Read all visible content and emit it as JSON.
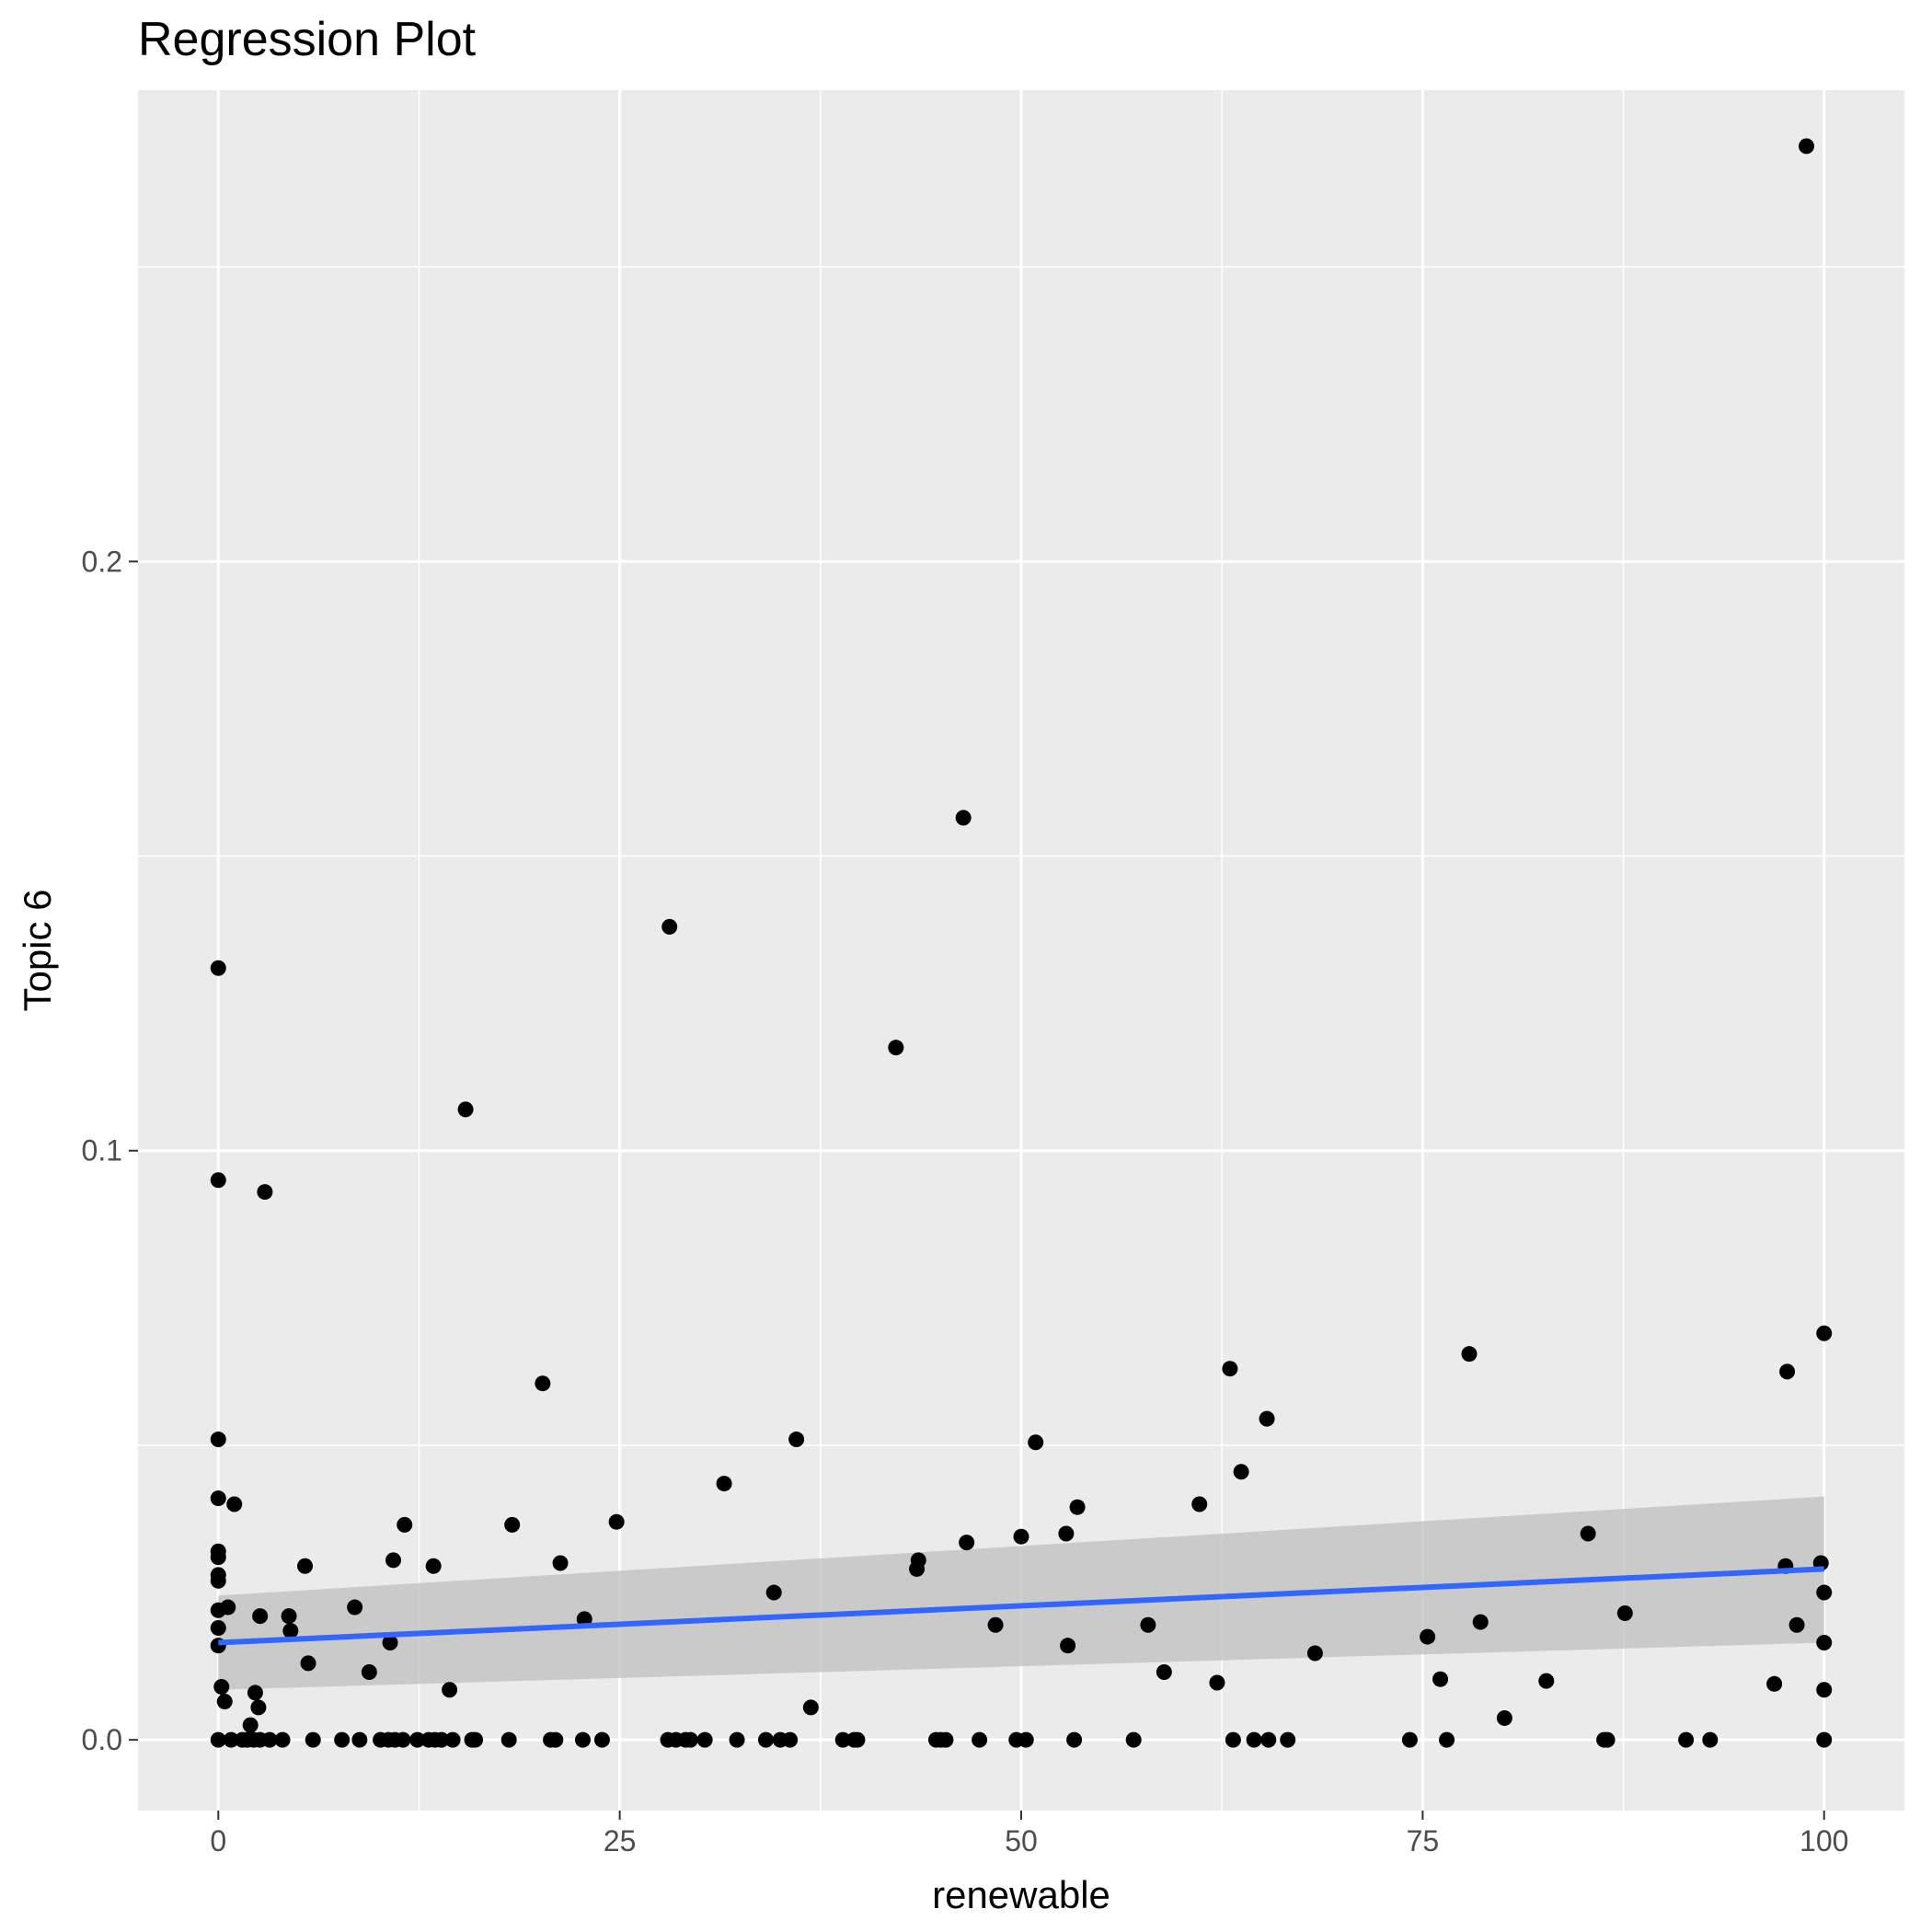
{
  "chart_data": {
    "type": "scatter",
    "title": "Regression Plot",
    "xlabel": "renewable",
    "ylabel": "Topic 6",
    "xlim": [
      -5,
      105
    ],
    "ylim": [
      -0.012,
      0.28
    ],
    "x_ticks": [
      0,
      25,
      50,
      75,
      100
    ],
    "x_tick_labels": [
      "0",
      "25",
      "50",
      "75",
      "100"
    ],
    "y_ticks": [
      0.0,
      0.1,
      0.2
    ],
    "y_tick_labels": [
      "0.0",
      "0.1",
      "0.2"
    ],
    "grid": true,
    "colors": {
      "panel": "#ebebeb",
      "grid_major": "#ffffff",
      "point": "#000000",
      "fit_line": "#3366ff",
      "confidence_band": "#bfbfbf"
    },
    "regression": {
      "x": [
        0,
        100
      ],
      "y": [
        0.0165,
        0.029
      ],
      "ci_lower": [
        0.0085,
        0.0165
      ],
      "ci_upper": [
        0.0245,
        0.0413
      ]
    },
    "points": [
      {
        "x": 0,
        "y": 0.131
      },
      {
        "x": 0,
        "y": 0.095
      },
      {
        "x": 0,
        "y": 0.051
      },
      {
        "x": 0,
        "y": 0.041
      },
      {
        "x": 0,
        "y": 0.032
      },
      {
        "x": 0,
        "y": 0.031
      },
      {
        "x": 0,
        "y": 0.028
      },
      {
        "x": 0,
        "y": 0.027
      },
      {
        "x": 0,
        "y": 0.022
      },
      {
        "x": 0,
        "y": 0.019
      },
      {
        "x": 0,
        "y": 0.016
      },
      {
        "x": 0,
        "y": 0.0
      },
      {
        "x": 0.2,
        "y": 0.009
      },
      {
        "x": 0.4,
        "y": 0.0065
      },
      {
        "x": 0.6,
        "y": 0.0225
      },
      {
        "x": 0.8,
        "y": 0.0
      },
      {
        "x": 1.0,
        "y": 0.04
      },
      {
        "x": 1.5,
        "y": 0.0
      },
      {
        "x": 1.8,
        "y": 0.0
      },
      {
        "x": 2.0,
        "y": 0.0025
      },
      {
        "x": 2.2,
        "y": 0.0
      },
      {
        "x": 2.3,
        "y": 0.008
      },
      {
        "x": 2.5,
        "y": 0.0055
      },
      {
        "x": 2.6,
        "y": 0.0
      },
      {
        "x": 2.6,
        "y": 0.021
      },
      {
        "x": 2.9,
        "y": 0.093
      },
      {
        "x": 3.2,
        "y": 0.0
      },
      {
        "x": 4.0,
        "y": 0.0
      },
      {
        "x": 4.4,
        "y": 0.021
      },
      {
        "x": 4.5,
        "y": 0.0185
      },
      {
        "x": 5.4,
        "y": 0.0295
      },
      {
        "x": 5.6,
        "y": 0.013
      },
      {
        "x": 5.9,
        "y": 0.0
      },
      {
        "x": 7.7,
        "y": 0.0
      },
      {
        "x": 8.5,
        "y": 0.0225
      },
      {
        "x": 8.8,
        "y": 0.0
      },
      {
        "x": 9.4,
        "y": 0.0115
      },
      {
        "x": 10.1,
        "y": 0.0
      },
      {
        "x": 10.6,
        "y": 0.0
      },
      {
        "x": 10.7,
        "y": 0.0165
      },
      {
        "x": 10.9,
        "y": 0.0305
      },
      {
        "x": 11.0,
        "y": 0.0
      },
      {
        "x": 11.5,
        "y": 0.0
      },
      {
        "x": 11.6,
        "y": 0.0365
      },
      {
        "x": 12.4,
        "y": 0.0
      },
      {
        "x": 13.1,
        "y": 0.0
      },
      {
        "x": 13.4,
        "y": 0.0295
      },
      {
        "x": 13.5,
        "y": 0.0
      },
      {
        "x": 13.9,
        "y": 0.0
      },
      {
        "x": 14.4,
        "y": 0.0085
      },
      {
        "x": 14.6,
        "y": 0.0
      },
      {
        "x": 15.4,
        "y": 0.107
      },
      {
        "x": 15.8,
        "y": 0.0
      },
      {
        "x": 16.0,
        "y": 0.0
      },
      {
        "x": 18.1,
        "y": 0.0
      },
      {
        "x": 18.3,
        "y": 0.0365
      },
      {
        "x": 20.2,
        "y": 0.0605
      },
      {
        "x": 20.7,
        "y": 0.0
      },
      {
        "x": 21.0,
        "y": 0.0
      },
      {
        "x": 21.3,
        "y": 0.03
      },
      {
        "x": 22.7,
        "y": 0.0
      },
      {
        "x": 22.8,
        "y": 0.0205
      },
      {
        "x": 23.9,
        "y": 0.0
      },
      {
        "x": 24.8,
        "y": 0.037
      },
      {
        "x": 28.0,
        "y": 0.0
      },
      {
        "x": 28.1,
        "y": 0.138
      },
      {
        "x": 28.5,
        "y": 0.0
      },
      {
        "x": 29.1,
        "y": 0.0
      },
      {
        "x": 29.4,
        "y": 0.0
      },
      {
        "x": 30.3,
        "y": 0.0
      },
      {
        "x": 31.5,
        "y": 0.0435
      },
      {
        "x": 32.3,
        "y": 0.0
      },
      {
        "x": 34.1,
        "y": 0.0
      },
      {
        "x": 34.6,
        "y": 0.025
      },
      {
        "x": 35.0,
        "y": 0.0
      },
      {
        "x": 35.6,
        "y": 0.0
      },
      {
        "x": 36.0,
        "y": 0.051
      },
      {
        "x": 36.9,
        "y": 0.0055
      },
      {
        "x": 38.9,
        "y": 0.0
      },
      {
        "x": 39.6,
        "y": 0.0
      },
      {
        "x": 39.8,
        "y": 0.0
      },
      {
        "x": 42.2,
        "y": 0.1175
      },
      {
        "x": 43.5,
        "y": 0.029
      },
      {
        "x": 43.6,
        "y": 0.0305
      },
      {
        "x": 44.7,
        "y": 0.0
      },
      {
        "x": 45.0,
        "y": 0.0
      },
      {
        "x": 45.3,
        "y": 0.0
      },
      {
        "x": 46.4,
        "y": 0.1565
      },
      {
        "x": 46.6,
        "y": 0.0335
      },
      {
        "x": 47.4,
        "y": 0.0
      },
      {
        "x": 48.4,
        "y": 0.0195
      },
      {
        "x": 49.7,
        "y": 0.0
      },
      {
        "x": 50.0,
        "y": 0.0345
      },
      {
        "x": 50.3,
        "y": 0.0
      },
      {
        "x": 50.9,
        "y": 0.0505
      },
      {
        "x": 52.8,
        "y": 0.035
      },
      {
        "x": 52.9,
        "y": 0.016
      },
      {
        "x": 53.3,
        "y": 0.0
      },
      {
        "x": 53.5,
        "y": 0.0395
      },
      {
        "x": 57.0,
        "y": 0.0
      },
      {
        "x": 57.9,
        "y": 0.0195
      },
      {
        "x": 58.9,
        "y": 0.0115
      },
      {
        "x": 61.1,
        "y": 0.04
      },
      {
        "x": 62.2,
        "y": 0.0097
      },
      {
        "x": 63.0,
        "y": 0.063
      },
      {
        "x": 63.2,
        "y": 0.0
      },
      {
        "x": 63.7,
        "y": 0.0455
      },
      {
        "x": 64.5,
        "y": 0.0
      },
      {
        "x": 65.3,
        "y": 0.0545
      },
      {
        "x": 65.4,
        "y": 0.0
      },
      {
        "x": 66.6,
        "y": 0.0
      },
      {
        "x": 68.3,
        "y": 0.0147
      },
      {
        "x": 74.2,
        "y": 0.0
      },
      {
        "x": 75.3,
        "y": 0.0175
      },
      {
        "x": 76.1,
        "y": 0.0103
      },
      {
        "x": 76.5,
        "y": 0.0
      },
      {
        "x": 77.9,
        "y": 0.0655
      },
      {
        "x": 78.6,
        "y": 0.02
      },
      {
        "x": 80.1,
        "y": 0.0037
      },
      {
        "x": 82.7,
        "y": 0.01
      },
      {
        "x": 85.3,
        "y": 0.035
      },
      {
        "x": 86.3,
        "y": 0.0
      },
      {
        "x": 86.5,
        "y": 0.0
      },
      {
        "x": 87.6,
        "y": 0.0215
      },
      {
        "x": 91.4,
        "y": 0.0
      },
      {
        "x": 92.9,
        "y": 0.0
      },
      {
        "x": 96.9,
        "y": 0.0095
      },
      {
        "x": 97.6,
        "y": 0.0295
      },
      {
        "x": 97.7,
        "y": 0.0625
      },
      {
        "x": 98.3,
        "y": 0.0195
      },
      {
        "x": 98.9,
        "y": 0.2705
      },
      {
        "x": 99.8,
        "y": 0.03
      },
      {
        "x": 100,
        "y": 0.069
      },
      {
        "x": 100,
        "y": 0.025
      },
      {
        "x": 100,
        "y": 0.0165
      },
      {
        "x": 100,
        "y": 0.0085
      },
      {
        "x": 100,
        "y": 0.0
      }
    ]
  }
}
